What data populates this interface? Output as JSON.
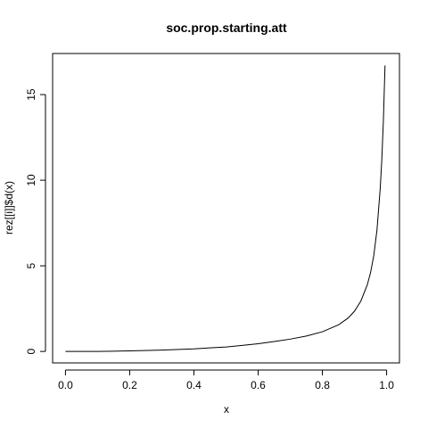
{
  "chart_data": {
    "type": "line",
    "title": "soc.prop.starting.att",
    "xlabel": "x",
    "ylabel": "rez[[i]]$d(x)",
    "xlim": [
      -0.04,
      1.04
    ],
    "ylim": [
      -0.67,
      17.4
    ],
    "xticks": [
      0.0,
      0.2,
      0.4,
      0.6,
      0.8,
      1.0
    ],
    "xtick_labels": [
      "0.0",
      "0.2",
      "0.4",
      "0.6",
      "0.8",
      "1.0"
    ],
    "yticks": [
      0,
      5,
      10,
      15
    ],
    "ytick_labels": [
      "0",
      "5",
      "10",
      "15"
    ],
    "grid": false,
    "series": [
      {
        "x": [
          0.0,
          0.1,
          0.2,
          0.3,
          0.4,
          0.45,
          0.5,
          0.55,
          0.6,
          0.65,
          0.7,
          0.75,
          0.8,
          0.85,
          0.88,
          0.9,
          0.92,
          0.94,
          0.95,
          0.96,
          0.97,
          0.98,
          0.985,
          0.99,
          0.995
        ],
        "y": [
          0.0,
          0.0,
          0.03,
          0.08,
          0.15,
          0.21,
          0.26,
          0.35,
          0.45,
          0.58,
          0.72,
          0.9,
          1.15,
          1.55,
          1.95,
          2.35,
          2.95,
          3.9,
          4.6,
          5.6,
          7.1,
          9.5,
          11.2,
          13.5,
          16.7
        ]
      }
    ]
  }
}
